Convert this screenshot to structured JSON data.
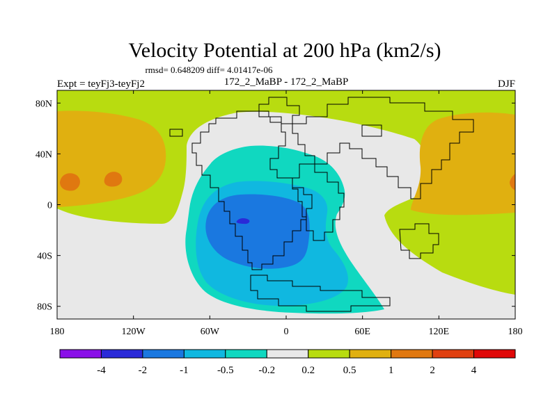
{
  "chart_data": {
    "type": "heatmap",
    "title": "Velocity Potential at 200 hPa (km2/s)",
    "stats_line": "rmsd= 0.648209  diff= 4.01417e-06",
    "left_label": "Expt = teyFj3-teyFj2",
    "center_label": "172_2_MaBP - 172_2_MaBP",
    "right_label": "DJF",
    "x_range": [
      -180,
      180
    ],
    "y_range": [
      -90,
      90
    ],
    "x_ticks": [
      {
        "value": -180,
        "label": "180"
      },
      {
        "value": -120,
        "label": "120W"
      },
      {
        "value": -60,
        "label": "60W"
      },
      {
        "value": 0,
        "label": "0"
      },
      {
        "value": 60,
        "label": "60E"
      },
      {
        "value": 120,
        "label": "120E"
      },
      {
        "value": 180,
        "label": "180"
      }
    ],
    "y_ticks": [
      {
        "value": 80,
        "label": "80N"
      },
      {
        "value": 40,
        "label": "40N"
      },
      {
        "value": 0,
        "label": "0"
      },
      {
        "value": -40,
        "label": "40S"
      },
      {
        "value": -80,
        "label": "80S"
      }
    ],
    "levels": [
      -4,
      -2,
      -1,
      -0.5,
      -0.2,
      0.2,
      0.5,
      1,
      2,
      4
    ],
    "level_labels": [
      "-4",
      "-2",
      "-1",
      "-0.5",
      "-0.2",
      "0.2",
      "0.5",
      "1",
      "2",
      "4"
    ],
    "colors": [
      "#8a10e8",
      "#2a2ad8",
      "#1a78e0",
      "#10b8e0",
      "#10d8c0",
      "#e8e8e8",
      "#b8dc10",
      "#e0b010",
      "#e07810",
      "#e04010",
      "#e00808"
    ],
    "colorbar_labels_visible": [
      "-4",
      "-2",
      "-1",
      "-0.5",
      "-0.2",
      "0.2",
      "0.5",
      "1",
      "2",
      "4"
    ],
    "field_regions": [
      {
        "name": "background",
        "value": 0.35
      },
      {
        "name": "neutral-band",
        "value": 0.0
      },
      {
        "name": "weak-negative",
        "value": -0.35
      },
      {
        "name": "moderate-negative",
        "value": -0.75
      },
      {
        "name": "strong-negative",
        "value": -1.5
      },
      {
        "name": "minimum",
        "value": -2.5
      },
      {
        "name": "positive-west",
        "value": 0.75
      },
      {
        "name": "positive-east",
        "value": 0.75
      },
      {
        "name": "max-west-a",
        "value": 1.5
      },
      {
        "name": "max-west-b",
        "value": 1.5
      },
      {
        "name": "max-east",
        "value": 1.5
      }
    ]
  }
}
